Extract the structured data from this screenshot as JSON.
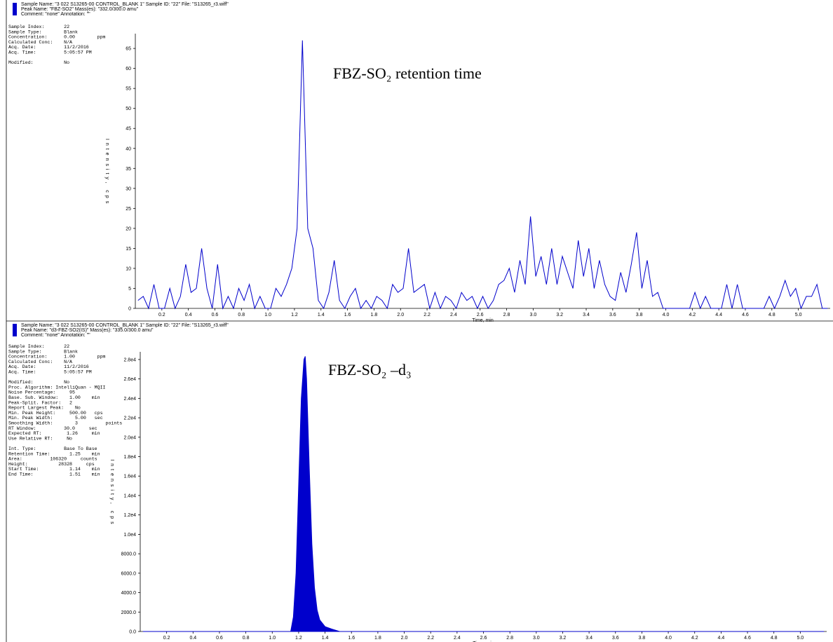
{
  "chart_data": [
    {
      "type": "line",
      "header": [
        "Sample Name: \"3 022 S13265-00 CONTROL_BLANK 1\"   Sample ID: \"22\"   File: \"S13265_r3.wiff\"",
        "Peak Name: \"FBZ-SO2\"   Mass(es): \"332.0/300.0 amu\"",
        "Comment: \"none\"   Annotation: \"\""
      ],
      "info": [
        [
          "Sample Index:       22",
          "Sample Type:        Blank",
          "Concentration:      0.00        ppm",
          "Calculated Conc:    N/A",
          "Acq. Date:          11/2/2016",
          "Acq. Time:          5:05:57 PM"
        ],
        [
          "Modified:           No"
        ]
      ],
      "annotation": "FBZ-SO₂ retention time",
      "x_label": "Time, min",
      "y_label": "Intensity, cps",
      "color": "#0000cc",
      "xlim": [
        0,
        5.24
      ],
      "ylim": [
        0,
        68
      ],
      "xticks": [
        0.2,
        0.4,
        0.6,
        0.8,
        {
          "value": 1,
          "label": "1.0"
        },
        1.2,
        1.4,
        1.6,
        1.8,
        {
          "value": 2,
          "label": "2.0"
        },
        2.2,
        2.4,
        2.6,
        2.8,
        {
          "value": 3,
          "label": "3.0"
        },
        3.2,
        3.4,
        3.6,
        3.8,
        {
          "value": 4,
          "label": "4.0"
        },
        4.2,
        4.4,
        4.6,
        4.8,
        {
          "value": 5,
          "label": "5.0"
        }
      ],
      "yticks": [
        0,
        5,
        10,
        15,
        20,
        25,
        30,
        35,
        40,
        45,
        50,
        55,
        60,
        65
      ],
      "x": [
        0.02,
        0.06,
        0.1,
        0.14,
        0.18,
        0.22,
        0.26,
        0.3,
        0.34,
        0.38,
        0.42,
        0.46,
        0.5,
        0.54,
        0.58,
        0.62,
        0.66,
        0.7,
        0.74,
        0.78,
        0.82,
        0.86,
        0.9,
        0.94,
        0.98,
        1.02,
        1.06,
        1.1,
        1.14,
        1.18,
        1.22,
        1.26,
        1.3,
        1.34,
        1.38,
        1.42,
        1.46,
        1.5,
        1.54,
        1.58,
        1.62,
        1.66,
        1.7,
        1.74,
        1.78,
        1.82,
        1.86,
        1.9,
        1.94,
        1.98,
        2.02,
        2.06,
        2.1,
        2.14,
        2.18,
        2.22,
        2.26,
        2.3,
        2.34,
        2.38,
        2.42,
        2.46,
        2.5,
        2.54,
        2.58,
        2.62,
        2.66,
        2.7,
        2.74,
        2.78,
        2.82,
        2.86,
        2.9,
        2.94,
        2.98,
        3.02,
        3.06,
        3.1,
        3.14,
        3.18,
        3.22,
        3.26,
        3.3,
        3.34,
        3.38,
        3.42,
        3.46,
        3.5,
        3.54,
        3.58,
        3.62,
        3.66,
        3.7,
        3.74,
        3.78,
        3.82,
        3.86,
        3.9,
        3.94,
        3.98,
        4.02,
        4.06,
        4.1,
        4.14,
        4.18,
        4.22,
        4.26,
        4.3,
        4.34,
        4.38,
        4.42,
        4.46,
        4.5,
        4.54,
        4.58,
        4.62,
        4.66,
        4.7,
        4.74,
        4.78,
        4.82,
        4.86,
        4.9,
        4.94,
        4.98,
        5.02,
        5.06,
        5.1,
        5.14,
        5.18,
        5.22
      ],
      "values": [
        2,
        3,
        0,
        6,
        0,
        0,
        5,
        0,
        3,
        11,
        4,
        5,
        15,
        5,
        0,
        11,
        0,
        3,
        0,
        5,
        2,
        6,
        0,
        3,
        0,
        0,
        5,
        3,
        6,
        10,
        20,
        67,
        20,
        15,
        2,
        0,
        4,
        12,
        2,
        0,
        3,
        5,
        0,
        2,
        0,
        3,
        2,
        0,
        6,
        4,
        5,
        15,
        4,
        5,
        6,
        0,
        4,
        0,
        3,
        2,
        0,
        4,
        2,
        3,
        0,
        3,
        0,
        2,
        6,
        7,
        10,
        4,
        12,
        6,
        23,
        8,
        13,
        6,
        15,
        6,
        13,
        9,
        5,
        17,
        8,
        15,
        5,
        12,
        6,
        3,
        2,
        9,
        4,
        11,
        19,
        5,
        12,
        3,
        4,
        0,
        0,
        0,
        0,
        0,
        0,
        4,
        0,
        3,
        0,
        0,
        0,
        6,
        0,
        6,
        0,
        0,
        0,
        0,
        0,
        3,
        0,
        3,
        7,
        3,
        5,
        0,
        3,
        3,
        6,
        0,
        0
      ]
    },
    {
      "type": "area",
      "header": [
        "Sample Name: \"3 022 S13265-00 CONTROL_BLANK 1\"   Sample ID: \"22\"   File: \"S13265_r3.wiff\"",
        "Peak Name: \"d3-FBZ-SO2(IS)\"   Mass(es): \"335.0/300.0 amu\"",
        "Comment: \"none\"   Annotation: \"\""
      ],
      "info": [
        [
          "Sample Index:       22",
          "Sample Type:        Blank",
          "Concentration:      1.00        ppm",
          "Calculated Conc:    N/A",
          "Acq. Date:          11/2/2016",
          "Acq. Time:          5:05:57 PM"
        ],
        [
          "Modified:           No",
          "Proc. Algorithm: IntelliQuan - MQII",
          "Noise Percentage:     95",
          "Base. Sub. Window:    1.00    min",
          "Peak-Split. Factor:   2",
          "Report Largest Peak:    No",
          "Min. Peak Height:     500.00   cps",
          "Min. Peak Width:        5.00   sec",
          "Smoothing Width:        3          points",
          "RT Window:          30.0     sec",
          "Expected RT:         1.26     min",
          "Use Relative RT:     No"
        ],
        [
          "Int. Type:          Base To Base",
          "Retention Time:       1.25    min",
          "Area:          106320     counts",
          "Height:           28328     cps",
          "Start Time:           1.14    min",
          "End Time:             1.51    min"
        ]
      ],
      "annotation": "FBZ-SO₂ –d₃",
      "x_label": "Time, min",
      "y_label": "Intensity, cps",
      "color": "#0000cc",
      "xlim": [
        0,
        5.2
      ],
      "ylim": [
        0,
        28500
      ],
      "xticks": [
        0.2,
        0.4,
        0.6,
        0.8,
        {
          "value": 1,
          "label": "1.0"
        },
        1.2,
        1.4,
        1.6,
        1.8,
        {
          "value": 2,
          "label": "2.0"
        },
        2.2,
        2.4,
        2.6,
        2.8,
        {
          "value": 3,
          "label": "3.0"
        },
        3.2,
        3.4,
        3.6,
        3.8,
        {
          "value": 4,
          "label": "4.0"
        },
        4.2,
        4.4,
        4.6,
        4.8,
        {
          "value": 5,
          "label": "5.0"
        }
      ],
      "yticks": [
        {
          "value": 0,
          "label": "0.0"
        },
        {
          "value": 2000,
          "label": "2000.0"
        },
        {
          "value": 4000,
          "label": "4000.0"
        },
        {
          "value": 6000,
          "label": "6000.0"
        },
        {
          "value": 8000,
          "label": "8000.0"
        },
        {
          "value": 10000,
          "label": "1.0e4"
        },
        {
          "value": 12000,
          "label": "1.2e4"
        },
        {
          "value": 14000,
          "label": "1.4e4"
        },
        {
          "value": 16000,
          "label": "1.6e4"
        },
        {
          "value": 18000,
          "label": "1.8e4"
        },
        {
          "value": 20000,
          "label": "2.0e4"
        },
        {
          "value": 22000,
          "label": "2.2e4"
        },
        {
          "value": 24000,
          "label": "2.4e4"
        },
        {
          "value": 26000,
          "label": "2.6e4"
        },
        {
          "value": 28000,
          "label": "2.8e4"
        }
      ],
      "x": [
        0.02,
        1.1,
        1.14,
        1.16,
        1.18,
        1.2,
        1.22,
        1.24,
        1.25,
        1.26,
        1.28,
        1.3,
        1.32,
        1.34,
        1.36,
        1.4,
        1.45,
        1.51,
        1.6,
        5.18
      ],
      "values": [
        0,
        0,
        0,
        1500,
        6000,
        15000,
        24000,
        28000,
        28328,
        26000,
        17000,
        9000,
        4500,
        2200,
        1200,
        500,
        250,
        0,
        0,
        0
      ]
    }
  ]
}
